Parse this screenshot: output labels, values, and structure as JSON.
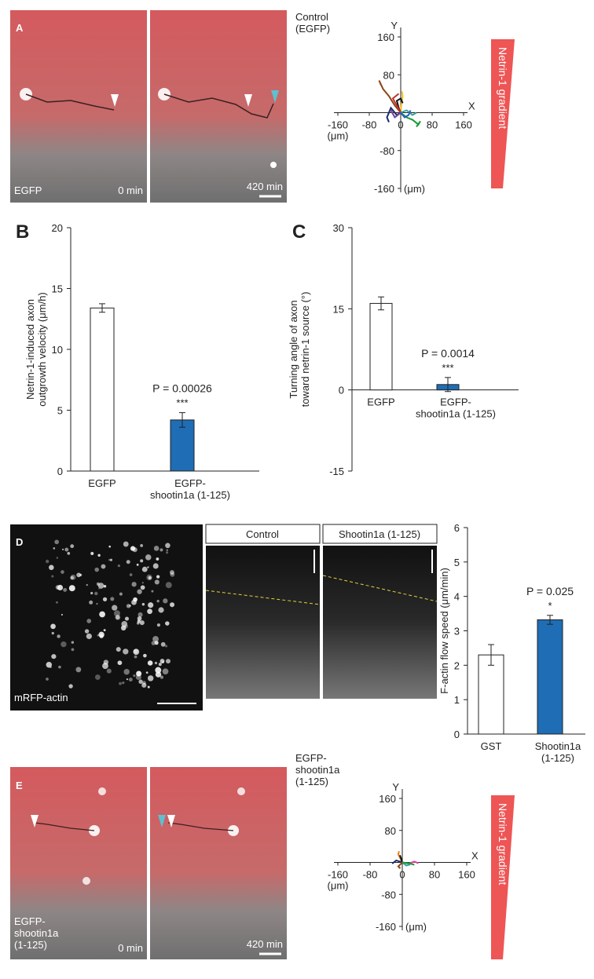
{
  "panels": [
    "A",
    "B",
    "C",
    "D",
    "E"
  ],
  "images": {
    "a_label": "EGFP",
    "a_left_time": "0 min",
    "a_right_time": "420 min",
    "d_label": "mRFP-actin",
    "d_kymo_left": "Control",
    "d_kymo_right": "Shootin1a (1-125)",
    "e_label": "EGFP-\nshootin1a\n(1-125)",
    "e_left_time": "0 min",
    "e_right_time": "420 min"
  },
  "chart_data": [
    {
      "type": "trace",
      "title": "Control\n(EGFP)",
      "xlabel": "X",
      "ylabel": "Y",
      "xunit": "(μm)",
      "yunit": "(μm)",
      "gradient_label": "Netrin-1 gradient",
      "xlim": [
        -160,
        160
      ],
      "ylim": [
        -160,
        160
      ],
      "xticks": [
        -160,
        -80,
        0,
        80,
        160
      ],
      "yticks": [
        -160,
        -80,
        80,
        160
      ],
      "series": [
        {
          "color": "#8b4513",
          "x": [
            0,
            -15,
            -30,
            -45,
            -55,
            -50
          ],
          "values": [
            0,
            15,
            35,
            50,
            68,
            58
          ]
        },
        {
          "color": "#1b2a6b",
          "x": [
            0,
            -10,
            -25,
            -35,
            -30
          ],
          "values": [
            0,
            -5,
            10,
            -10,
            -20
          ]
        },
        {
          "color": "#f0c020",
          "x": [
            0,
            2,
            5,
            3
          ],
          "values": [
            0,
            20,
            35,
            45
          ]
        },
        {
          "color": "#1a9a3a",
          "x": [
            0,
            15,
            30,
            45,
            50,
            40
          ],
          "values": [
            0,
            -10,
            -15,
            -25,
            -18,
            -30
          ]
        },
        {
          "color": "#111111",
          "x": [
            0,
            -5,
            -10,
            0,
            5
          ],
          "values": [
            0,
            10,
            25,
            30,
            20
          ]
        },
        {
          "color": "#c0302a",
          "x": [
            0,
            -10,
            -20,
            -5
          ],
          "values": [
            0,
            15,
            30,
            40
          ]
        },
        {
          "color": "#3aa0a0",
          "x": [
            0,
            15,
            30,
            40
          ],
          "values": [
            0,
            5,
            -5,
            0
          ]
        },
        {
          "color": "#7b3f9a",
          "x": [
            0,
            -15,
            -25
          ],
          "values": [
            0,
            -10,
            5
          ]
        },
        {
          "color": "#2060c0",
          "x": [
            0,
            10,
            20,
            25
          ],
          "values": [
            0,
            -10,
            -5,
            5
          ]
        }
      ]
    },
    {
      "type": "bar",
      "ylabel": "Netrin-1-induced axon\noutgrowth velocity (μm/h)",
      "categories": [
        "EGFP",
        "EGFP-\nshootin1a (1-125)"
      ],
      "values": [
        13.4,
        4.2
      ],
      "errors": [
        0.35,
        0.6
      ],
      "colors": [
        "#ffffff",
        "#1f6db5"
      ],
      "ylim": [
        0,
        20
      ],
      "yticks": [
        0,
        5,
        10,
        15,
        20
      ],
      "annotation": [
        "P = 0.00026",
        "***"
      ]
    },
    {
      "type": "bar",
      "ylabel": "Turning angle of axon\ntoward netrin-1 source  (°)",
      "categories": [
        "EGFP",
        "EGFP-\nshootin1a (1-125)"
      ],
      "values": [
        16,
        1
      ],
      "errors": [
        1.2,
        1.3
      ],
      "colors": [
        "#ffffff",
        "#1f6db5"
      ],
      "ylim": [
        -15,
        30
      ],
      "yticks": [
        -15,
        0,
        15,
        30
      ],
      "annotation": [
        "P = 0.0014",
        "***"
      ]
    },
    {
      "type": "bar",
      "ylabel": "F-actin flow speed (μm/min)",
      "categories": [
        "GST",
        "Shootin1a\n(1-125)"
      ],
      "values": [
        2.3,
        3.32
      ],
      "errors": [
        0.3,
        0.13
      ],
      "colors": [
        "#ffffff",
        "#1f6db5"
      ],
      "ylim": [
        0,
        6
      ],
      "yticks": [
        0,
        1,
        2,
        3,
        4,
        5,
        6
      ],
      "annotation": [
        "P = 0.025",
        "*"
      ]
    },
    {
      "type": "trace",
      "title": "EGFP-\nshootin1a\n(1-125)",
      "xlabel": "X",
      "ylabel": "Y",
      "xunit": "(μm)",
      "yunit": "(μm)",
      "gradient_label": "Netrin-1 gradient",
      "xlim": [
        -160,
        160
      ],
      "ylim": [
        -160,
        160
      ],
      "xticks": [
        -160,
        -80,
        0,
        80,
        160
      ],
      "yticks": [
        -160,
        -80,
        80,
        160
      ],
      "series": [
        {
          "color": "#e08020",
          "x": [
            0,
            -5,
            -10,
            -8
          ],
          "values": [
            0,
            10,
            20,
            28
          ]
        },
        {
          "color": "#111111",
          "x": [
            0,
            -3,
            -6
          ],
          "values": [
            0,
            10,
            18
          ]
        },
        {
          "color": "#e0409a",
          "x": [
            0,
            15,
            30,
            40
          ],
          "values": [
            0,
            -3,
            2,
            -2
          ]
        },
        {
          "color": "#1b2a6b",
          "x": [
            0,
            -15,
            -25
          ],
          "values": [
            0,
            5,
            -3
          ]
        },
        {
          "color": "#3aa0a0",
          "x": [
            0,
            10,
            20
          ],
          "values": [
            0,
            -8,
            -5
          ]
        },
        {
          "color": "#8b4513",
          "x": [
            0,
            -10,
            -5
          ],
          "values": [
            0,
            -10,
            -15
          ]
        },
        {
          "color": "#1a9a3a",
          "x": [
            0,
            20,
            30
          ],
          "values": [
            0,
            -3,
            -6
          ]
        }
      ]
    }
  ]
}
